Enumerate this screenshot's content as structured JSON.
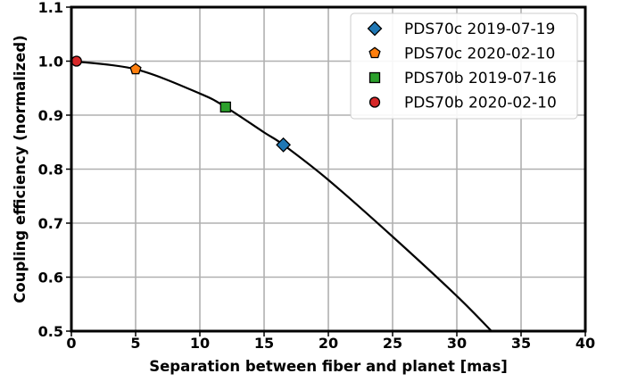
{
  "chart_data": {
    "type": "scatter",
    "title": "",
    "xlabel": "Separation between fiber and planet [mas]",
    "ylabel": "Coupling efficiency (normalized)",
    "xlim": [
      0,
      40
    ],
    "ylim": [
      0.5,
      1.1
    ],
    "xticks": [
      "0",
      "5",
      "10",
      "15",
      "20",
      "25",
      "30",
      "35",
      "40"
    ],
    "yticks": [
      "0.5",
      "0.6",
      "0.7",
      "0.8",
      "0.9",
      "1.0",
      "1.1"
    ],
    "grid": true,
    "legend_position": "top-right",
    "curve": {
      "color": "#000000",
      "x": [
        0,
        5,
        10,
        12,
        15,
        16.5,
        20,
        25,
        30,
        32.7
      ],
      "y": [
        1.0,
        0.985,
        0.94,
        0.915,
        0.868,
        0.845,
        0.78,
        0.675,
        0.565,
        0.5
      ]
    },
    "series": [
      {
        "name": "PDS70c 2019-07-19",
        "marker": "diamond",
        "color": "#1f77b4",
        "x": [
          16.5
        ],
        "y": [
          0.845
        ]
      },
      {
        "name": "PDS70c 2020-02-10",
        "marker": "pentagon",
        "color": "#ff7f0e",
        "x": [
          5.0
        ],
        "y": [
          0.985
        ]
      },
      {
        "name": "PDS70b 2019-07-16",
        "marker": "square",
        "color": "#2ca02c",
        "x": [
          12.0
        ],
        "y": [
          0.915
        ]
      },
      {
        "name": "PDS70b 2020-02-10",
        "marker": "circle",
        "color": "#d62728",
        "x": [
          0.4
        ],
        "y": [
          1.0
        ]
      }
    ]
  }
}
